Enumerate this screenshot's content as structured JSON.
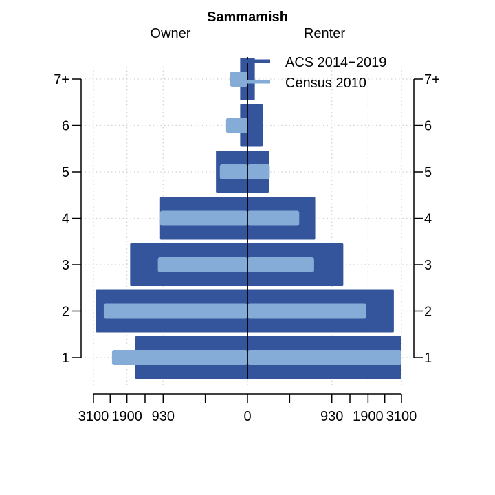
{
  "chart_data": {
    "type": "bar",
    "orientation": "horizontal-back-to-back",
    "title": "Sammamish",
    "left_label": "Owner",
    "right_label": "Renter",
    "categories": [
      "1",
      "2",
      "3",
      "4",
      "5",
      "6",
      "7+"
    ],
    "x_tick_values": [
      -3100,
      -1900,
      -930,
      0,
      930,
      1900,
      3100
    ],
    "x_tick_labels": [
      "3100",
      "1900",
      "930",
      "0",
      "930",
      "1900",
      "3100"
    ],
    "x_axis_scale": "sqrt",
    "x_range": [
      -3100,
      3100
    ],
    "grid": true,
    "legend_position": "top-right",
    "series": [
      {
        "name": "ACS 2014−2019",
        "color": "#34559c",
        "owner": [
          1650,
          3000,
          1800,
          1000,
          130,
          7,
          7
        ],
        "renter": [
          3100,
          2800,
          1200,
          600,
          60,
          30,
          7
        ]
      },
      {
        "name": "Census 2010",
        "color": "#85acd6",
        "owner": [
          2400,
          2700,
          1050,
          1000,
          100,
          60,
          40
        ],
        "renter": [
          3100,
          1850,
          580,
          350,
          65,
          0,
          0
        ]
      }
    ]
  }
}
